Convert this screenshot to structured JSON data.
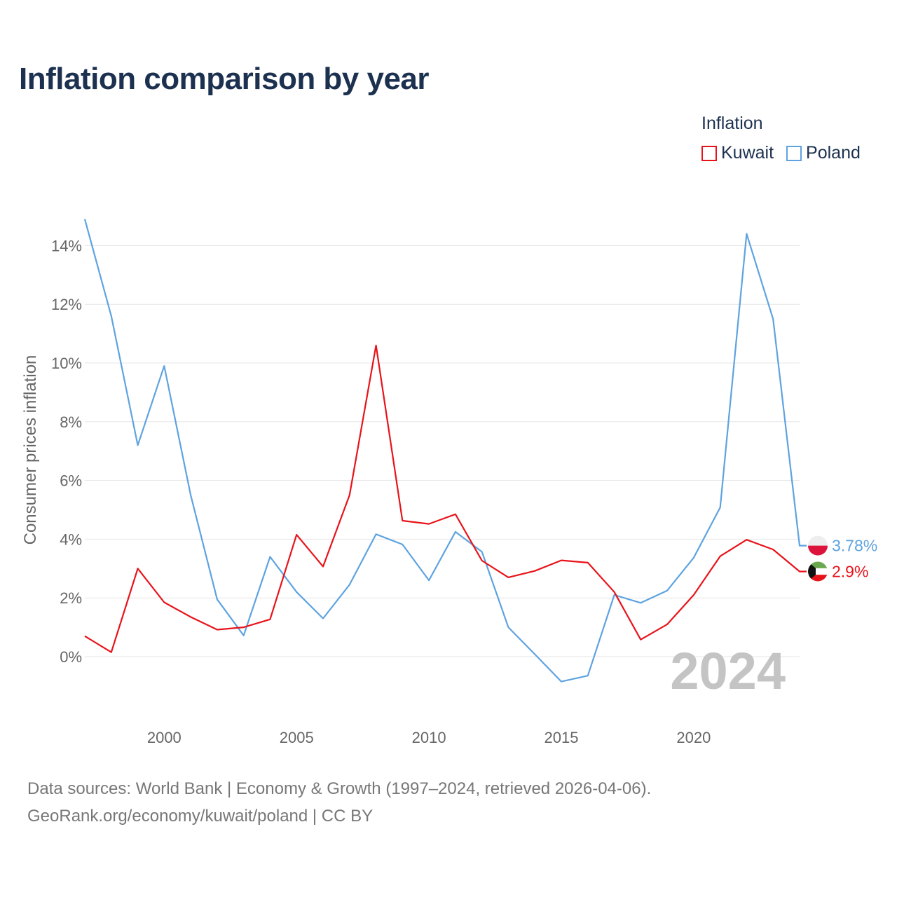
{
  "header": {
    "title": "Inflation comparison by year"
  },
  "legend": {
    "title": "Inflation",
    "items": [
      {
        "label": "Kuwait",
        "color": "#e8131a"
      },
      {
        "label": "Poland",
        "color": "#5ea3e0"
      }
    ]
  },
  "chart_data": {
    "type": "line",
    "title": "Inflation comparison by year",
    "ylabel": "Consumer prices inflation",
    "xlabel": "",
    "x": [
      1997,
      1998,
      1999,
      2000,
      2001,
      2002,
      2003,
      2004,
      2005,
      2006,
      2007,
      2008,
      2009,
      2010,
      2011,
      2012,
      2013,
      2014,
      2015,
      2016,
      2017,
      2018,
      2019,
      2020,
      2021,
      2022,
      2023,
      2024
    ],
    "series": [
      {
        "name": "Kuwait",
        "color": "#e8131a",
        "values": [
          0.7,
          0.15,
          3.0,
          1.85,
          1.35,
          0.92,
          1.0,
          1.27,
          4.15,
          3.07,
          5.5,
          10.6,
          4.63,
          4.52,
          4.85,
          3.27,
          2.7,
          2.92,
          3.28,
          3.2,
          2.2,
          0.58,
          1.1,
          2.1,
          3.42,
          3.98,
          3.65,
          2.9
        ],
        "end_label": "2.9%"
      },
      {
        "name": "Poland",
        "color": "#5ea3e0",
        "values": [
          14.9,
          11.6,
          7.2,
          9.9,
          5.5,
          1.95,
          0.72,
          3.4,
          2.2,
          1.3,
          2.45,
          4.17,
          3.82,
          2.6,
          4.25,
          3.57,
          1.0,
          0.08,
          -0.85,
          -0.65,
          2.1,
          1.83,
          2.25,
          3.37,
          5.08,
          14.4,
          11.5,
          3.78
        ],
        "end_label": "3.78%"
      }
    ],
    "yticks": [
      0,
      2,
      4,
      6,
      8,
      10,
      12,
      14
    ],
    "ytick_labels": [
      "0%",
      "2%",
      "4%",
      "6%",
      "8%",
      "10%",
      "12%",
      "14%"
    ],
    "xticks": [
      2000,
      2005,
      2010,
      2015,
      2020
    ],
    "xtick_labels": [
      "2000",
      "2005",
      "2010",
      "2015",
      "2020"
    ],
    "xlim": [
      1997,
      2024
    ],
    "ylim": [
      -1.2,
      15.0
    ],
    "year_watermark": "2024",
    "grid": true
  },
  "footer": {
    "line1": "Data sources: World Bank | Economy & Growth (1997–2024, retrieved 2026-04-06).",
    "line2": "GeoRank.org/economy/kuwait/poland | CC BY"
  }
}
